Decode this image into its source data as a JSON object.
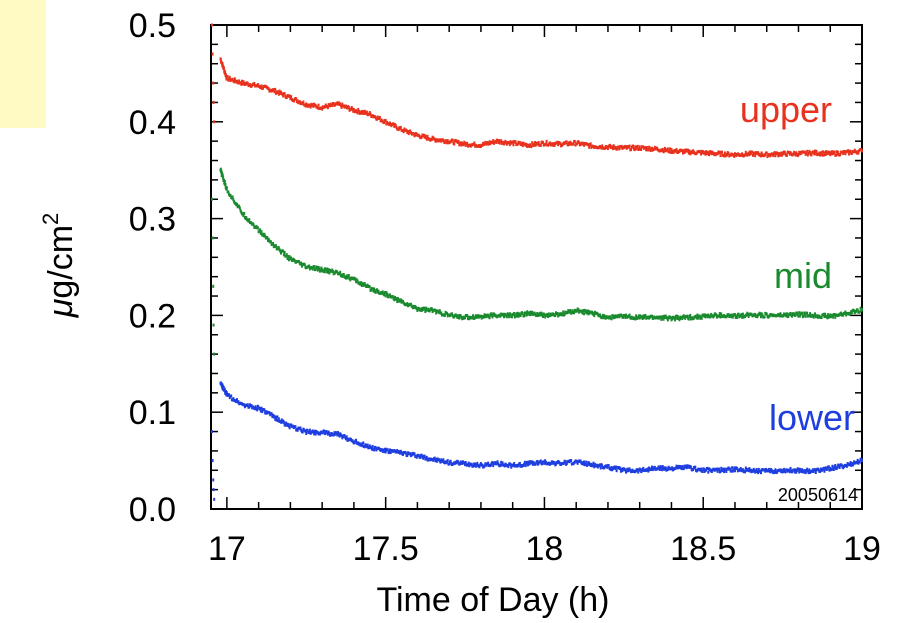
{
  "chart_data": {
    "type": "scatter",
    "xlabel": "Time of Day (h)",
    "ylabel": "μg/cm²",
    "ylabel_parts": {
      "mu": "μ",
      "unit": "g/cm",
      "sup": "2"
    },
    "xlim": [
      16.95,
      19.0
    ],
    "ylim": [
      0.0,
      0.5
    ],
    "x_ticks": [
      "17",
      "17.5",
      "18",
      "18.5",
      "19"
    ],
    "x_tick_values": [
      17,
      17.5,
      18,
      18.5,
      19
    ],
    "y_ticks": [
      "0.0",
      "0.1",
      "0.2",
      "0.3",
      "0.4",
      "0.5"
    ],
    "y_tick_values": [
      0.0,
      0.1,
      0.2,
      0.3,
      0.4,
      0.5
    ],
    "annotation": "20050614",
    "grid": false,
    "series": [
      {
        "name": "upper",
        "color": "#e8321e",
        "x": [
          16.98,
          17.0,
          17.05,
          17.1,
          17.15,
          17.2,
          17.25,
          17.3,
          17.35,
          17.4,
          17.45,
          17.5,
          17.55,
          17.6,
          17.65,
          17.7,
          17.75,
          17.8,
          17.85,
          17.9,
          17.95,
          18.0,
          18.05,
          18.1,
          18.15,
          18.2,
          18.25,
          18.3,
          18.35,
          18.4,
          18.45,
          18.5,
          18.55,
          18.6,
          18.65,
          18.7,
          18.75,
          18.8,
          18.85,
          18.9,
          18.95,
          19.0
        ],
        "y": [
          0.465,
          0.445,
          0.44,
          0.437,
          0.432,
          0.425,
          0.418,
          0.415,
          0.418,
          0.412,
          0.408,
          0.4,
          0.392,
          0.386,
          0.382,
          0.38,
          0.377,
          0.376,
          0.38,
          0.378,
          0.376,
          0.378,
          0.377,
          0.378,
          0.375,
          0.374,
          0.373,
          0.373,
          0.372,
          0.37,
          0.369,
          0.368,
          0.367,
          0.366,
          0.367,
          0.366,
          0.367,
          0.367,
          0.368,
          0.367,
          0.368,
          0.37
        ]
      },
      {
        "name": "mid",
        "color": "#1a8a2e",
        "x": [
          16.98,
          17.0,
          17.05,
          17.1,
          17.15,
          17.2,
          17.25,
          17.3,
          17.35,
          17.4,
          17.45,
          17.5,
          17.55,
          17.6,
          17.65,
          17.7,
          17.75,
          17.8,
          17.85,
          17.9,
          17.95,
          18.0,
          18.05,
          18.1,
          18.15,
          18.2,
          18.25,
          18.3,
          18.35,
          18.4,
          18.45,
          18.5,
          18.55,
          18.6,
          18.65,
          18.7,
          18.75,
          18.8,
          18.85,
          18.9,
          18.95,
          19.0
        ],
        "y": [
          0.35,
          0.33,
          0.305,
          0.288,
          0.272,
          0.258,
          0.25,
          0.247,
          0.244,
          0.237,
          0.228,
          0.222,
          0.214,
          0.207,
          0.205,
          0.2,
          0.198,
          0.199,
          0.2,
          0.2,
          0.202,
          0.2,
          0.201,
          0.205,
          0.202,
          0.198,
          0.199,
          0.198,
          0.198,
          0.197,
          0.198,
          0.199,
          0.2,
          0.199,
          0.201,
          0.2,
          0.2,
          0.201,
          0.2,
          0.199,
          0.202,
          0.206
        ]
      },
      {
        "name": "lower",
        "color": "#1e3ee0",
        "x": [
          16.98,
          17.0,
          17.05,
          17.1,
          17.15,
          17.2,
          17.25,
          17.3,
          17.35,
          17.4,
          17.45,
          17.5,
          17.55,
          17.6,
          17.65,
          17.7,
          17.75,
          17.8,
          17.85,
          17.9,
          17.95,
          18.0,
          18.05,
          18.1,
          18.15,
          18.2,
          18.25,
          18.3,
          18.35,
          18.4,
          18.45,
          18.5,
          18.55,
          18.6,
          18.65,
          18.7,
          18.75,
          18.8,
          18.85,
          18.9,
          18.95,
          19.0
        ],
        "y": [
          0.13,
          0.118,
          0.108,
          0.104,
          0.095,
          0.085,
          0.08,
          0.079,
          0.077,
          0.07,
          0.064,
          0.06,
          0.058,
          0.055,
          0.051,
          0.048,
          0.047,
          0.045,
          0.047,
          0.045,
          0.047,
          0.048,
          0.047,
          0.049,
          0.046,
          0.043,
          0.04,
          0.04,
          0.042,
          0.042,
          0.043,
          0.04,
          0.04,
          0.041,
          0.04,
          0.039,
          0.04,
          0.04,
          0.039,
          0.042,
          0.045,
          0.05
        ]
      }
    ],
    "early_points": [
      {
        "color": "#e8321e",
        "x": [
          16.953,
          16.955,
          16.957,
          16.958,
          16.96
        ],
        "y": [
          0.5,
          0.47,
          0.44,
          0.42,
          0.4
        ]
      },
      {
        "color": "#1a8a2e",
        "x": [
          16.953,
          16.955,
          16.957,
          16.958,
          16.96
        ],
        "y": [
          0.32,
          0.28,
          0.23,
          0.19,
          0.16
        ]
      },
      {
        "color": "#1e3ee0",
        "x": [
          16.953,
          16.955,
          16.957,
          16.958,
          16.96
        ],
        "y": [
          0.08,
          0.05,
          0.03,
          0.02,
          0.01
        ]
      }
    ]
  }
}
